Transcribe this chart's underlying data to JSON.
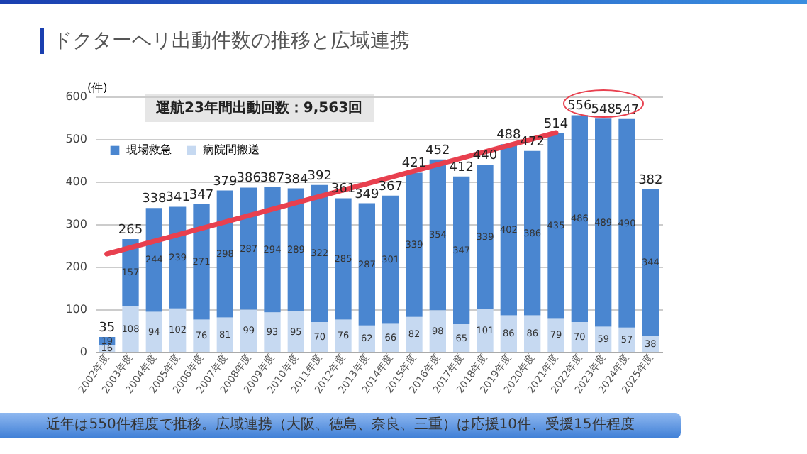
{
  "chart_data": {
    "type": "bar",
    "stacked": true,
    "title": "ドクターヘリ出動件数の推移と広域連携",
    "ylabel": "(件)",
    "annotations": [
      "運航23年間出動回数：9,563回",
      "近年は550件程度で推移。広域連携（大阪、徳島、奈良、三重）は応援10件、受援15件程度"
    ],
    "categories": [
      "2002年度",
      "2003年度",
      "2004年度",
      "2005年度",
      "2006年度",
      "2007年度",
      "2008年度",
      "2009年度",
      "2010年度",
      "2011年度",
      "2012年度",
      "2013年度",
      "2014年度",
      "2015年度",
      "2016年度",
      "2017年度",
      "2018年度",
      "2019年度",
      "2020年度",
      "2021年度",
      "2022年度",
      "2023年度",
      "2024年度",
      "2025年度"
    ],
    "series": [
      {
        "name": "病院間搬送",
        "color": "#c6d9f1",
        "values": [
          16,
          108,
          94,
          102,
          76,
          81,
          99,
          93,
          95,
          70,
          76,
          62,
          66,
          82,
          98,
          65,
          101,
          86,
          86,
          79,
          70,
          59,
          57,
          38
        ],
        "value_labels": [
          "16",
          "108",
          "94",
          "102",
          "76",
          "81",
          "99",
          "93",
          "95",
          "70",
          "76",
          "62",
          "66",
          "82",
          "98",
          "65",
          "101",
          "86",
          "86",
          "79",
          "70",
          "59",
          "57",
          "38"
        ]
      },
      {
        "name": "現場救急",
        "color": "#4a86d0",
        "values": [
          19,
          157,
          244,
          239,
          271,
          298,
          287,
          294,
          289,
          322,
          285,
          287,
          301,
          339,
          354,
          347,
          339,
          402,
          386,
          435,
          486,
          489,
          490,
          344
        ],
        "value_labels": [
          "19",
          "157",
          "244",
          "239",
          "271",
          "298",
          "287",
          "294",
          "289",
          "322",
          "285",
          "287",
          "301",
          "339",
          "354",
          "347",
          "339",
          "402",
          "386",
          "435",
          "486",
          "489",
          "490",
          "344"
        ]
      },
      {
        "type": "line",
        "color": "#e8404f",
        "x": [
          "2002年度",
          "2021年度"
        ],
        "values": [
          230,
          515
        ]
      }
    ],
    "totals": [
      "35",
      "265",
      "338",
      "341",
      "347",
      "379",
      "386",
      "387",
      "384",
      "392",
      "361",
      "349",
      "367",
      "421",
      "452",
      "412",
      "440",
      "488",
      "472",
      "514",
      "556",
      "548",
      "547",
      "382"
    ],
    "ylim": [
      0,
      600
    ],
    "yticks": [
      0,
      100,
      200,
      300,
      400,
      500,
      600
    ],
    "grid": "y",
    "legend": "top left"
  }
}
